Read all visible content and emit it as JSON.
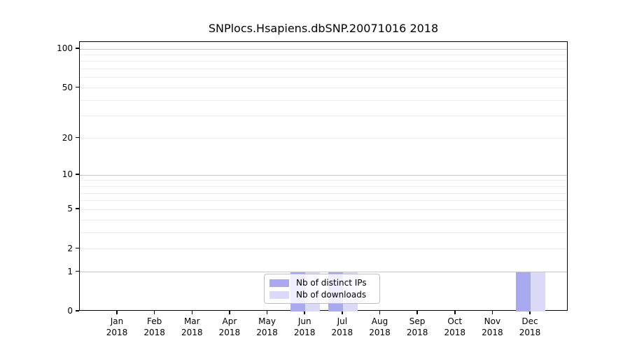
{
  "chart_data": {
    "type": "bar",
    "title": "SNPlocs.Hsapiens.dbSNP.20071016 2018",
    "categories": [
      "Jan",
      "Feb",
      "Mar",
      "Apr",
      "May",
      "Jun",
      "Jul",
      "Aug",
      "Sep",
      "Oct",
      "Nov",
      "Dec"
    ],
    "category_year": "2018",
    "series": [
      {
        "name": "Nb of distinct IPs",
        "color": "#a9a9f0",
        "values": [
          0,
          0,
          0,
          0,
          0,
          1,
          1,
          0,
          0,
          0,
          0,
          1
        ]
      },
      {
        "name": "Nb of downloads",
        "color": "#dadaf8",
        "values": [
          0,
          0,
          0,
          0,
          0,
          1,
          1,
          0,
          0,
          0,
          0,
          1
        ]
      }
    ],
    "xlabel": "",
    "ylabel": "",
    "yscale": "log1p",
    "ylim": [
      0,
      113
    ],
    "yticks": [
      0,
      1,
      2,
      5,
      10,
      20,
      50,
      100
    ],
    "ytick_labels": [
      "0",
      "1",
      "2",
      "5",
      "10",
      "20",
      "50",
      "100"
    ],
    "grid": {
      "on": true,
      "major_values": [
        1,
        10,
        100
      ],
      "minor_values": [
        2,
        3,
        4,
        5,
        6,
        7,
        8,
        9,
        20,
        30,
        40,
        50,
        60,
        70,
        80,
        90
      ],
      "major_color": "#c6c6c6",
      "minor_color": "#ededed"
    },
    "legend": {
      "position": "bottom-center",
      "entries": [
        "Nb of distinct IPs",
        "Nb of downloads"
      ],
      "border_color": "#c0c0c0",
      "background": "#ffffff"
    },
    "colors": {
      "axis": "#000000",
      "background": "#ffffff",
      "text": "#000000"
    }
  }
}
